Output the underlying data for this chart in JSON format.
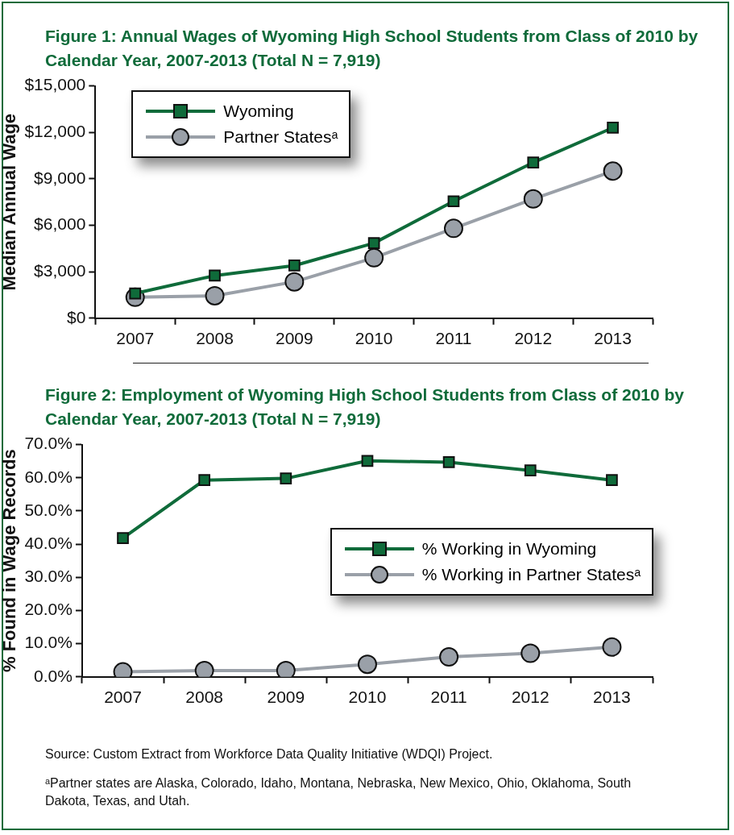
{
  "chart_data": [
    {
      "type": "line",
      "title": "Figure 1: Annual Wages of Wyoming High School Students from Class of 2010 by Calendar Year, 2007-2013 (Total N = 7,919)",
      "ylabel": "Median Annual Wage",
      "categories": [
        "2007",
        "2008",
        "2009",
        "2010",
        "2011",
        "2012",
        "2013"
      ],
      "series": [
        {
          "name": "Wyoming",
          "color": "#0f6b3a",
          "marker": "square",
          "values": [
            1600,
            2750,
            3400,
            4850,
            7550,
            10050,
            12300
          ]
        },
        {
          "name": "Partner Statesᵃ",
          "color": "#9aa0a8",
          "marker": "circle",
          "values": [
            1350,
            1450,
            2350,
            3900,
            5800,
            7700,
            9500
          ]
        }
      ],
      "ylim": [
        0,
        15000
      ],
      "yticks": [
        {
          "value": 0,
          "label": "$0"
        },
        {
          "value": 3000,
          "label": "$3,000"
        },
        {
          "value": 6000,
          "label": "$6,000"
        },
        {
          "value": 9000,
          "label": "$9,000"
        },
        {
          "value": 12000,
          "label": "$12,000"
        },
        {
          "value": 15000,
          "label": "$15,000"
        }
      ],
      "grid": false,
      "legend": "top left"
    },
    {
      "type": "line",
      "title": "Figure 2: Employment of Wyoming High School Students from Class of 2010 by Calendar Year, 2007-2013 (Total N = 7,919)",
      "ylabel": "% Found in Wage Records",
      "categories": [
        "2007",
        "2008",
        "2009",
        "2010",
        "2011",
        "2012",
        "2013"
      ],
      "series": [
        {
          "name": "% Working in Wyoming",
          "color": "#0f6b3a",
          "marker": "square",
          "values": [
            41.8,
            59.3,
            59.8,
            65.1,
            64.7,
            62.2,
            59.3
          ]
        },
        {
          "name": "% Working in Partner Statesᵃ",
          "color": "#9aa0a8",
          "marker": "circle",
          "values": [
            1.5,
            1.9,
            1.9,
            3.8,
            6.0,
            7.1,
            9.0
          ]
        }
      ],
      "ylim": [
        0,
        70
      ],
      "yticks": [
        {
          "value": 0,
          "label": "0.0%"
        },
        {
          "value": 10,
          "label": "10.0%"
        },
        {
          "value": 20,
          "label": "20.0%"
        },
        {
          "value": 30,
          "label": "30.0%"
        },
        {
          "value": 40,
          "label": "40.0%"
        },
        {
          "value": 50,
          "label": "50.0%"
        },
        {
          "value": 60,
          "label": "60.0%"
        },
        {
          "value": 70,
          "label": "70.0%"
        }
      ],
      "grid": false,
      "legend": "right",
      "annotations": [
        "Source: Custom Extract from Workforce Data Quality Initiative (WDQI) Project.",
        "ᵃPartner states are Alaska, Colorado, Idaho, Montana, Nebraska, New Mexico, Ohio, Oklahoma, South Dakota, Texas, and Utah."
      ]
    }
  ]
}
